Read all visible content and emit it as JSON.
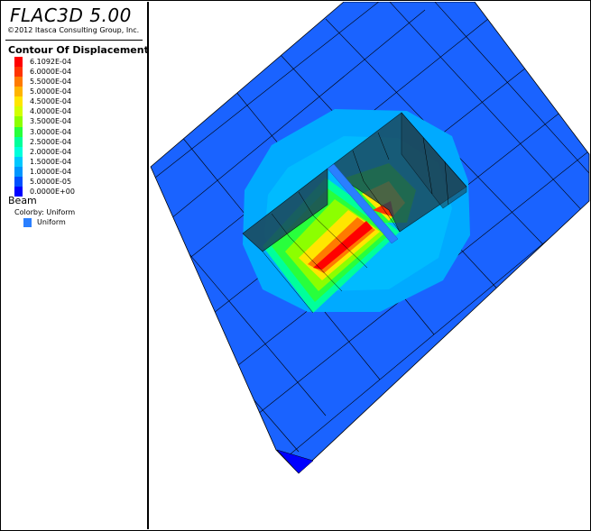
{
  "title": "FLAC3D 5.00",
  "copyright": "©2012 Itasca Consulting Group, Inc.",
  "contour": {
    "heading": "Contour Of Displacement",
    "levels": [
      {
        "label": "6.1092E-04",
        "color": "#ff0000"
      },
      {
        "label": "6.0000E-04",
        "color": "#ff3300"
      },
      {
        "label": "5.5000E-04",
        "color": "#ff7a00"
      },
      {
        "label": "5.0000E-04",
        "color": "#ffb400"
      },
      {
        "label": "4.5000E-04",
        "color": "#ffe600"
      },
      {
        "label": "4.0000E-04",
        "color": "#d2ff00"
      },
      {
        "label": "3.5000E-04",
        "color": "#8cff00"
      },
      {
        "label": "3.0000E-04",
        "color": "#28ff3c"
      },
      {
        "label": "2.5000E-04",
        "color": "#00ff9b"
      },
      {
        "label": "2.0000E-04",
        "color": "#00ffdc"
      },
      {
        "label": "1.5000E-04",
        "color": "#00c8ff"
      },
      {
        "label": "1.0000E-04",
        "color": "#0096ff"
      },
      {
        "label": "5.0000E-05",
        "color": "#0050ff"
      },
      {
        "label": "0.0000E+00",
        "color": "#0000ff"
      }
    ]
  },
  "beam": {
    "heading": "Beam",
    "colorby": "Colorby: Uniform",
    "entry": "Uniform",
    "color": "#2a7fff"
  },
  "model": {
    "zone_color": "#1a63ff",
    "halo_color": "#00aaff",
    "edge_color": "#000000",
    "tunnel_color": "#1d4456"
  }
}
